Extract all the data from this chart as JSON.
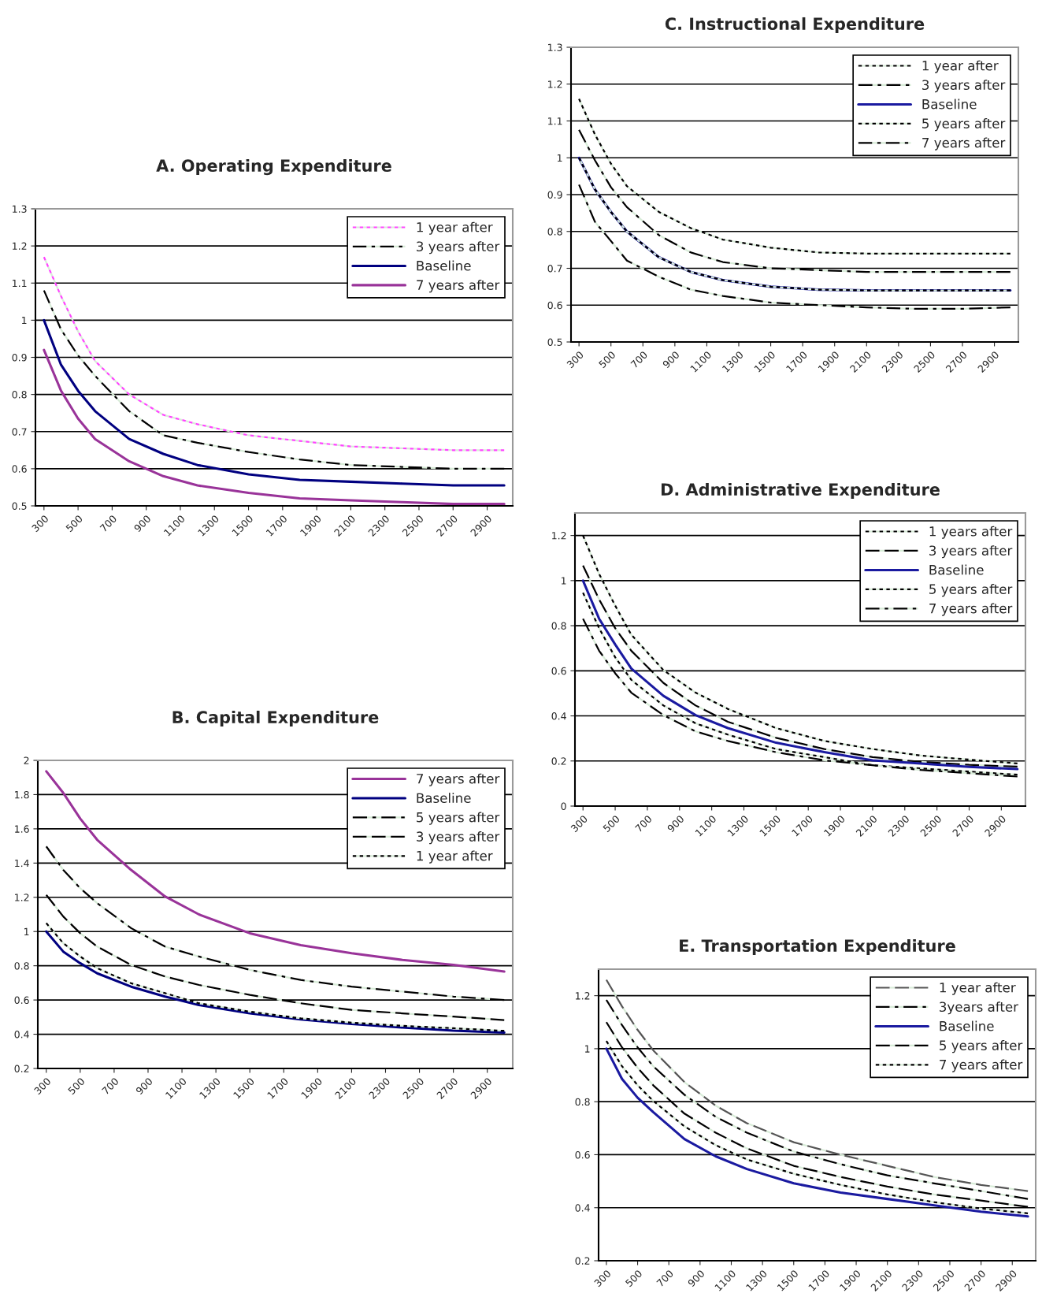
{
  "chart_data": [
    {
      "type": "line",
      "title": "A. Operating Expenditure",
      "x": [
        300,
        400,
        500,
        600,
        800,
        1000,
        1200,
        1500,
        1800,
        2100,
        2400,
        2700,
        3000
      ],
      "xlim": [
        250,
        3050
      ],
      "xticks": [
        300,
        500,
        700,
        900,
        1100,
        1300,
        1500,
        1700,
        1900,
        2100,
        2300,
        2500,
        2700,
        2900
      ],
      "ylim": [
        0.5,
        1.3
      ],
      "yticks": [
        0.5,
        0.6,
        0.7,
        0.8,
        0.9,
        1,
        1.1,
        1.2,
        1.3
      ],
      "grid": "y",
      "legend": "top right",
      "series": [
        {
          "name": "1 year after",
          "color": "#ff44ff",
          "line_style": "dotted",
          "values": [
            1.17,
            1.065,
            0.97,
            0.89,
            0.8,
            0.745,
            0.72,
            0.69,
            0.675,
            0.66,
            0.655,
            0.65,
            0.65
          ]
        },
        {
          "name": "3 years after",
          "color": "#000000",
          "line_style": "dashdot",
          "values": [
            1.08,
            0.975,
            0.905,
            0.85,
            0.755,
            0.69,
            0.67,
            0.645,
            0.625,
            0.61,
            0.605,
            0.6,
            0.6
          ]
        },
        {
          "name": "Baseline",
          "color": "#000080",
          "line_style": "solid",
          "values": [
            1.0,
            0.88,
            0.81,
            0.755,
            0.68,
            0.64,
            0.61,
            0.585,
            0.57,
            0.565,
            0.56,
            0.555,
            0.555
          ]
        },
        {
          "name": "7 years after",
          "color": "#993399",
          "line_style": "solid",
          "values": [
            0.92,
            0.81,
            0.735,
            0.68,
            0.62,
            0.58,
            0.555,
            0.535,
            0.52,
            0.515,
            0.51,
            0.505,
            0.505
          ]
        }
      ]
    },
    {
      "type": "line",
      "title": "C. Instructional Expenditure",
      "x": [
        300,
        400,
        500,
        600,
        800,
        1000,
        1200,
        1500,
        1800,
        2100,
        2400,
        2700,
        3000
      ],
      "xlim": [
        250,
        3050
      ],
      "xticks": [
        300,
        500,
        700,
        900,
        1100,
        1300,
        1500,
        1700,
        1900,
        2100,
        2300,
        2500,
        2700,
        2900
      ],
      "ylim": [
        0.5,
        1.3
      ],
      "yticks": [
        0.5,
        0.6,
        0.7,
        0.8,
        0.9,
        1,
        1.1,
        1.2,
        1.3
      ],
      "grid": "y",
      "legend": "top right",
      "series": [
        {
          "name": "1 year after",
          "color": "#000000",
          "line_style": "dotted",
          "values": [
            1.16,
            1.063,
            0.984,
            0.923,
            0.853,
            0.809,
            0.778,
            0.756,
            0.743,
            0.74,
            0.74,
            0.74,
            0.74
          ]
        },
        {
          "name": "3 years after",
          "color": "#000000",
          "line_style": "dashdot",
          "values": [
            1.076,
            0.993,
            0.92,
            0.866,
            0.79,
            0.743,
            0.717,
            0.7,
            0.695,
            0.69,
            0.69,
            0.69,
            0.69
          ]
        },
        {
          "name": "Baseline",
          "color": "#1a1aa0",
          "line_style": "solid",
          "values": [
            1.0,
            0.914,
            0.853,
            0.8,
            0.73,
            0.69,
            0.668,
            0.65,
            0.642,
            0.64,
            0.64,
            0.64,
            0.64
          ]
        },
        {
          "name": "5 years after",
          "color": "#000000",
          "line_style": "dotted",
          "values": [
            1.0,
            0.914,
            0.853,
            0.8,
            0.73,
            0.69,
            0.668,
            0.65,
            0.642,
            0.64,
            0.64,
            0.64,
            0.64
          ]
        },
        {
          "name": "7 years after",
          "color": "#000000",
          "line_style": "dashdot",
          "values": [
            0.927,
            0.826,
            0.774,
            0.721,
            0.677,
            0.642,
            0.625,
            0.607,
            0.6,
            0.594,
            0.59,
            0.59,
            0.594
          ]
        }
      ]
    },
    {
      "type": "line",
      "title": "B. Capital Expenditure",
      "x": [
        300,
        400,
        500,
        600,
        800,
        1000,
        1200,
        1500,
        1800,
        2100,
        2400,
        2700,
        3000
      ],
      "xlim": [
        250,
        3050
      ],
      "xticks": [
        300,
        500,
        700,
        900,
        1100,
        1300,
        1500,
        1700,
        1900,
        2100,
        2300,
        2500,
        2700,
        2900
      ],
      "ylim": [
        0.2,
        2
      ],
      "yticks": [
        0.2,
        0.4,
        0.6,
        0.8,
        1,
        1.2,
        1.4,
        1.6,
        1.8,
        2
      ],
      "grid": "y",
      "legend": "top right",
      "series": [
        {
          "name": "7 years after",
          "color": "#993399",
          "line_style": "solid",
          "values": [
            1.936,
            1.81,
            1.66,
            1.536,
            1.36,
            1.205,
            1.1,
            0.99,
            0.92,
            0.873,
            0.834,
            0.805,
            0.766
          ]
        },
        {
          "name": "Baseline",
          "color": "#000080",
          "line_style": "solid",
          "values": [
            1.0,
            0.883,
            0.815,
            0.756,
            0.678,
            0.62,
            0.571,
            0.522,
            0.487,
            0.46,
            0.439,
            0.421,
            0.41
          ]
        },
        {
          "name": "5 years after",
          "color": "#000000",
          "line_style": "dashdot",
          "values": [
            1.497,
            1.36,
            1.253,
            1.166,
            1.02,
            0.912,
            0.854,
            0.776,
            0.717,
            0.678,
            0.649,
            0.62,
            0.6
          ]
        },
        {
          "name": "3 years after",
          "color": "#000000",
          "line_style": "dashed",
          "values": [
            1.214,
            1.088,
            0.99,
            0.912,
            0.805,
            0.737,
            0.688,
            0.63,
            0.581,
            0.542,
            0.522,
            0.503,
            0.483
          ]
        },
        {
          "name": "1 year after",
          "color": "#000000",
          "line_style": "dotted",
          "values": [
            1.049,
            0.932,
            0.854,
            0.786,
            0.698,
            0.64,
            0.581,
            0.532,
            0.493,
            0.468,
            0.449,
            0.435,
            0.42
          ]
        }
      ]
    },
    {
      "type": "line",
      "title": "D. Administrative Expenditure",
      "x": [
        300,
        400,
        500,
        600,
        800,
        1000,
        1200,
        1500,
        1800,
        2100,
        2400,
        2700,
        3000
      ],
      "xlim": [
        250,
        3050
      ],
      "xticks": [
        300,
        500,
        700,
        900,
        1100,
        1300,
        1500,
        1700,
        1900,
        2100,
        2300,
        2500,
        2700,
        2900
      ],
      "ylim": [
        0,
        1.3
      ],
      "yticks": [
        0,
        0.2,
        0.4,
        0.6,
        0.8,
        1,
        1.2
      ],
      "grid": "y",
      "legend": "top right",
      "series": [
        {
          "name": "1 years after",
          "color": "#000000",
          "line_style": "dotted",
          "values": [
            1.2,
            1.03,
            0.889,
            0.76,
            0.603,
            0.503,
            0.431,
            0.346,
            0.289,
            0.253,
            0.224,
            0.206,
            0.189
          ]
        },
        {
          "name": "3 years after",
          "color": "#000000",
          "line_style": "dashed",
          "values": [
            1.067,
            0.917,
            0.789,
            0.689,
            0.546,
            0.446,
            0.374,
            0.303,
            0.253,
            0.217,
            0.196,
            0.183,
            0.175
          ]
        },
        {
          "name": "Baseline",
          "color": "#1a1aa0",
          "line_style": "solid",
          "values": [
            1.0,
            0.831,
            0.717,
            0.61,
            0.489,
            0.403,
            0.346,
            0.281,
            0.239,
            0.203,
            0.189,
            0.174,
            0.164
          ]
        },
        {
          "name": "5 years after",
          "color": "#000000",
          "line_style": "dotted",
          "values": [
            0.946,
            0.789,
            0.66,
            0.56,
            0.446,
            0.367,
            0.317,
            0.253,
            0.217,
            0.181,
            0.167,
            0.153,
            0.139
          ]
        },
        {
          "name": "7 years after",
          "color": "#000000",
          "line_style": "dashdot",
          "values": [
            0.831,
            0.689,
            0.589,
            0.503,
            0.403,
            0.331,
            0.289,
            0.239,
            0.203,
            0.181,
            0.16,
            0.146,
            0.131
          ]
        }
      ]
    },
    {
      "type": "line",
      "title": "E. Transportation Expenditure",
      "x": [
        300,
        400,
        500,
        600,
        800,
        1000,
        1200,
        1500,
        1800,
        2100,
        2400,
        2700,
        3000
      ],
      "xlim": [
        250,
        3050
      ],
      "xticks": [
        300,
        500,
        700,
        900,
        1100,
        1300,
        1500,
        1700,
        1900,
        2100,
        2300,
        2500,
        2700,
        2900
      ],
      "ylim": [
        0.2,
        1.3
      ],
      "yticks": [
        0.2,
        0.4,
        0.6,
        0.8,
        1,
        1.2
      ],
      "grid": "y",
      "legend": "top right",
      "series": [
        {
          "name": "1 year after",
          "color": "#555555",
          "line_style": "dashed",
          "values": [
            1.26,
            1.16,
            1.071,
            0.994,
            0.874,
            0.785,
            0.719,
            0.647,
            0.6,
            0.558,
            0.516,
            0.486,
            0.463
          ]
        },
        {
          "name": "3years after",
          "color": "#000000",
          "line_style": "dashdot",
          "values": [
            1.184,
            1.089,
            1.005,
            0.934,
            0.826,
            0.743,
            0.683,
            0.612,
            0.564,
            0.522,
            0.492,
            0.463,
            0.433
          ]
        },
        {
          "name": "Baseline",
          "color": "#1a1aa0",
          "line_style": "solid",
          "values": [
            1.0,
            0.886,
            0.815,
            0.761,
            0.659,
            0.594,
            0.546,
            0.492,
            0.457,
            0.433,
            0.409,
            0.385,
            0.367
          ]
        },
        {
          "name": "5 years after",
          "color": "#000000",
          "line_style": "dashed",
          "values": [
            1.1,
            1.005,
            0.928,
            0.862,
            0.755,
            0.683,
            0.624,
            0.558,
            0.516,
            0.48,
            0.45,
            0.427,
            0.403
          ]
        },
        {
          "name": "7 years after",
          "color": "#000000",
          "line_style": "dotted",
          "values": [
            1.029,
            0.934,
            0.862,
            0.803,
            0.707,
            0.636,
            0.582,
            0.528,
            0.486,
            0.45,
            0.421,
            0.397,
            0.379
          ]
        }
      ]
    }
  ]
}
